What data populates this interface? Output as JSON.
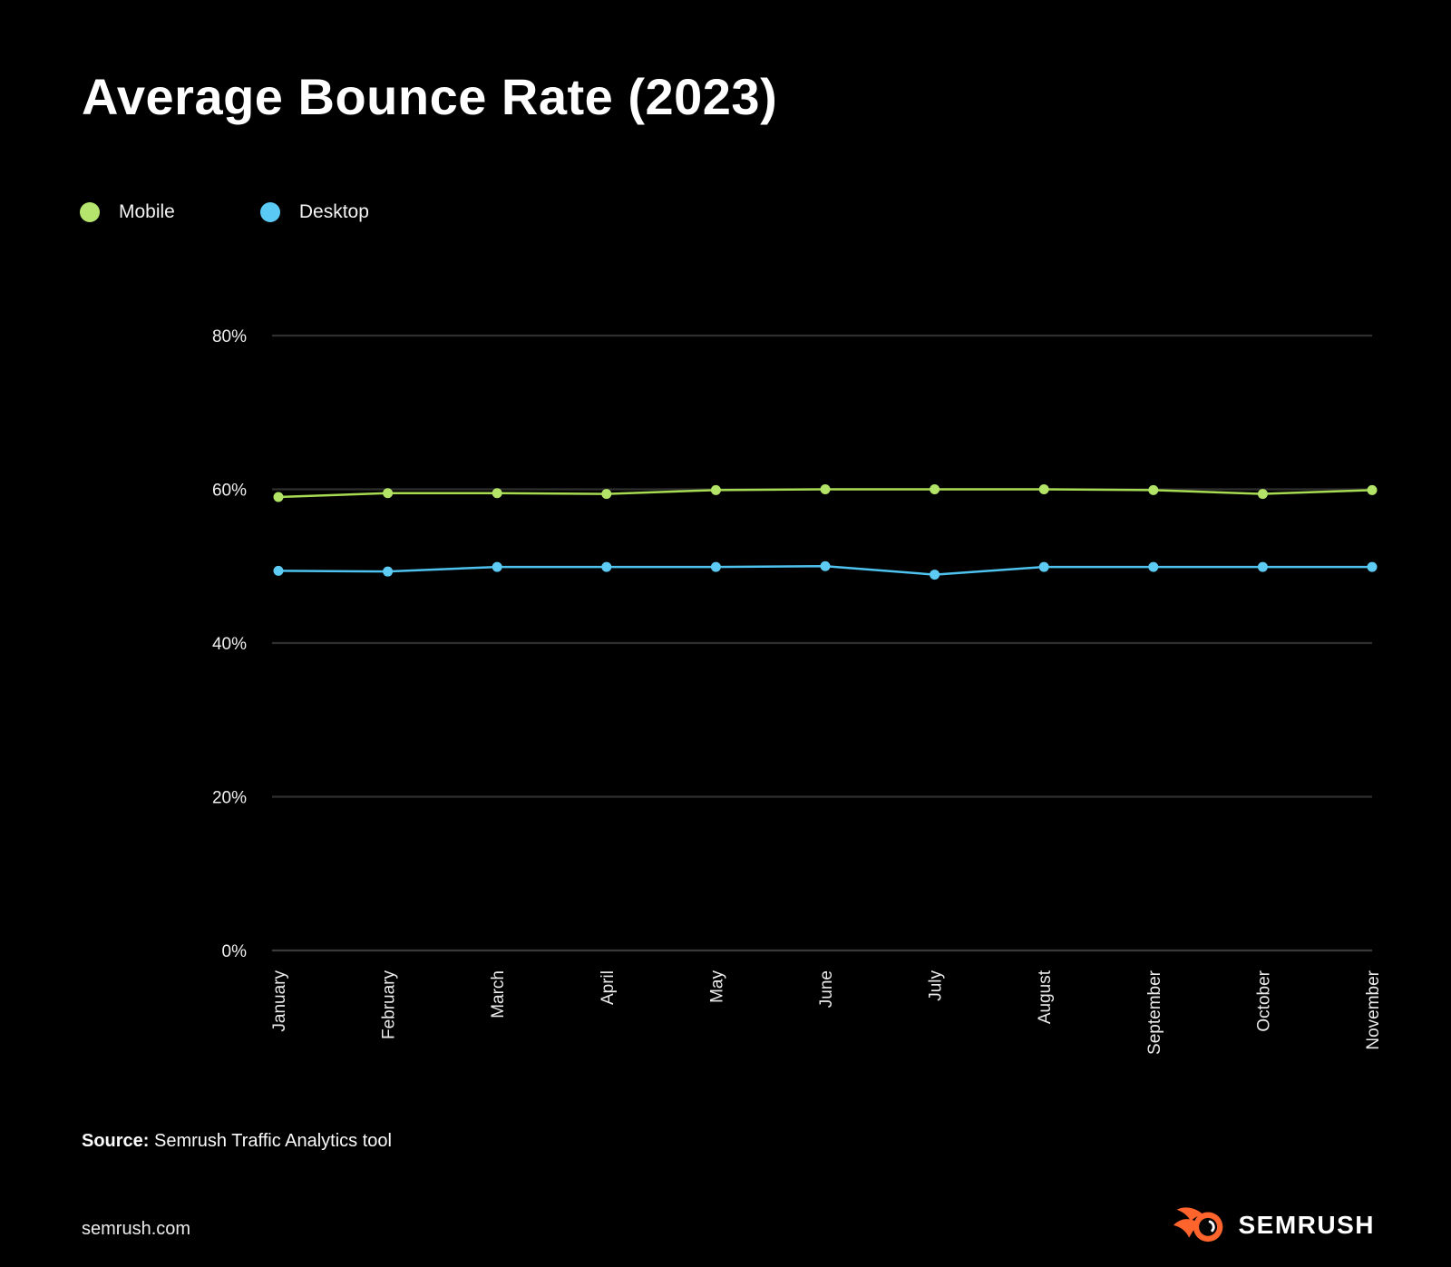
{
  "title": "Average Bounce Rate (2023)",
  "legend": {
    "items": [
      {
        "label": "Mobile",
        "color": "#b6e56e"
      },
      {
        "label": "Desktop",
        "color": "#5ac9f3"
      }
    ]
  },
  "chart_data": {
    "type": "line",
    "title": "Average Bounce Rate (2023)",
    "x": [
      "January",
      "February",
      "March",
      "April",
      "May",
      "June",
      "July",
      "August",
      "September",
      "October",
      "November"
    ],
    "series": [
      {
        "name": "Mobile",
        "color": "#a7db52",
        "point_color": "#b3e468",
        "values": [
          59.0,
          59.5,
          59.5,
          59.4,
          59.9,
          60.0,
          60.0,
          60.0,
          59.9,
          59.4,
          59.9
        ]
      },
      {
        "name": "Desktop",
        "color": "#4fc3ef",
        "point_color": "#5dcbf4",
        "values": [
          49.4,
          49.3,
          49.9,
          49.9,
          49.9,
          50.0,
          48.9,
          49.9,
          49.9,
          49.9,
          49.9
        ]
      }
    ],
    "ylim": [
      0,
      80
    ],
    "ytick_values": [
      0,
      20,
      40,
      60,
      80
    ],
    "ytick_labels": [
      "0%",
      "20%",
      "40%",
      "60%",
      "80%"
    ],
    "xlabel": "",
    "ylabel": "",
    "grid": true,
    "legend_position": "top-left"
  },
  "footer": {
    "source_label": "Source:",
    "source_rest": " Semrush Traffic Analytics tool",
    "website": "semrush.com",
    "brand_name": "SEMRUSH"
  },
  "colors": {
    "background": "#000000",
    "grid": "#2f2f2f",
    "baseline": "#3a3a3a",
    "tick_text": "#f0f0f0",
    "month_text": "#eaeaea",
    "brand_orange": "#ff642d",
    "title_text": "#ffffff"
  }
}
